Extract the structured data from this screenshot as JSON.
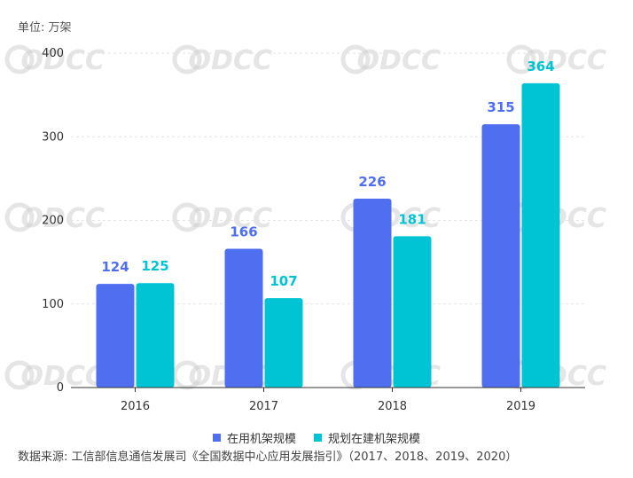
{
  "unit_label": "单位: 万架",
  "source_note": "数据来源: 工信部信息通信发展司《全国数据中心应用发展指引》（2017、2018、2019、2020）",
  "watermark": "ODCC",
  "colors": {
    "series_0": "#4f6ef0",
    "series_1": "#00c4d4",
    "grid": "#e3e3e3",
    "axis": "#333333"
  },
  "chart_data": {
    "type": "bar",
    "categories": [
      "2016",
      "2017",
      "2018",
      "2019"
    ],
    "series": [
      {
        "name": "在用机架规模",
        "values": [
          124,
          166,
          226,
          315
        ]
      },
      {
        "name": "规划在建机架规模",
        "values": [
          125,
          107,
          181,
          364
        ]
      }
    ],
    "ylim": [
      0,
      400
    ],
    "yticks": [
      "0",
      "100",
      "200",
      "300",
      "400"
    ],
    "grid": true,
    "legend_position": "bottom-center"
  }
}
